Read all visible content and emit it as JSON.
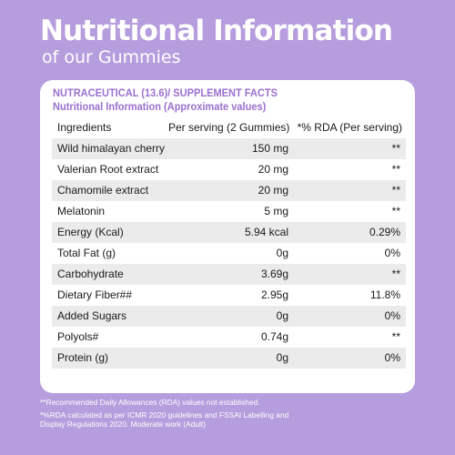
{
  "hero": {
    "title": "Nutritional Information",
    "subtitle": "of our Gummies"
  },
  "card": {
    "heading_line1": "NUTRACEUTICAL (13.6)/ SUPPLEMENT FACTS",
    "heading_line2": "Nutritional Information (Approximate values)"
  },
  "table": {
    "headers": [
      "Ingredients",
      "Per serving (2 Gummies)",
      "*% RDA (Per serving)"
    ],
    "rows": [
      {
        "name": "Wild himalayan cherry",
        "amount": "150 mg",
        "rda": "**"
      },
      {
        "name": "Valerian Root extract",
        "amount": "20 mg",
        "rda": "**"
      },
      {
        "name": "Chamomile extract",
        "amount": "20 mg",
        "rda": "**"
      },
      {
        "name": "Melatonin",
        "amount": "5 mg",
        "rda": "**"
      },
      {
        "name": "Energy (Kcal)",
        "amount": "5.94 kcal",
        "rda": "0.29%"
      },
      {
        "name": "Total Fat (g)",
        "amount": "0g",
        "rda": "0%"
      },
      {
        "name": "Carbohydrate",
        "amount": "3.69g",
        "rda": "**"
      },
      {
        "name": "Dietary Fiber##",
        "amount": "2.95g",
        "rda": "11.8%"
      },
      {
        "name": "Added Sugars",
        "amount": "0g",
        "rda": "0%"
      },
      {
        "name": "Polyols#",
        "amount": "0.74g",
        "rda": "**"
      },
      {
        "name": "Protein (g)",
        "amount": "0g",
        "rda": "0%"
      }
    ]
  },
  "footnotes": {
    "note1": "**Recommended Daily Allowances (RDA) values not established.",
    "note2": "*%RDA calculated as per ICMR 2020 guidelines and FSSAI Labelling and Display Regulations 2020. Moderate work (Adult)"
  },
  "colors": {
    "background": "#b69ddd",
    "heading": "#9b6fd1",
    "row_shade": "#ebebeb"
  }
}
